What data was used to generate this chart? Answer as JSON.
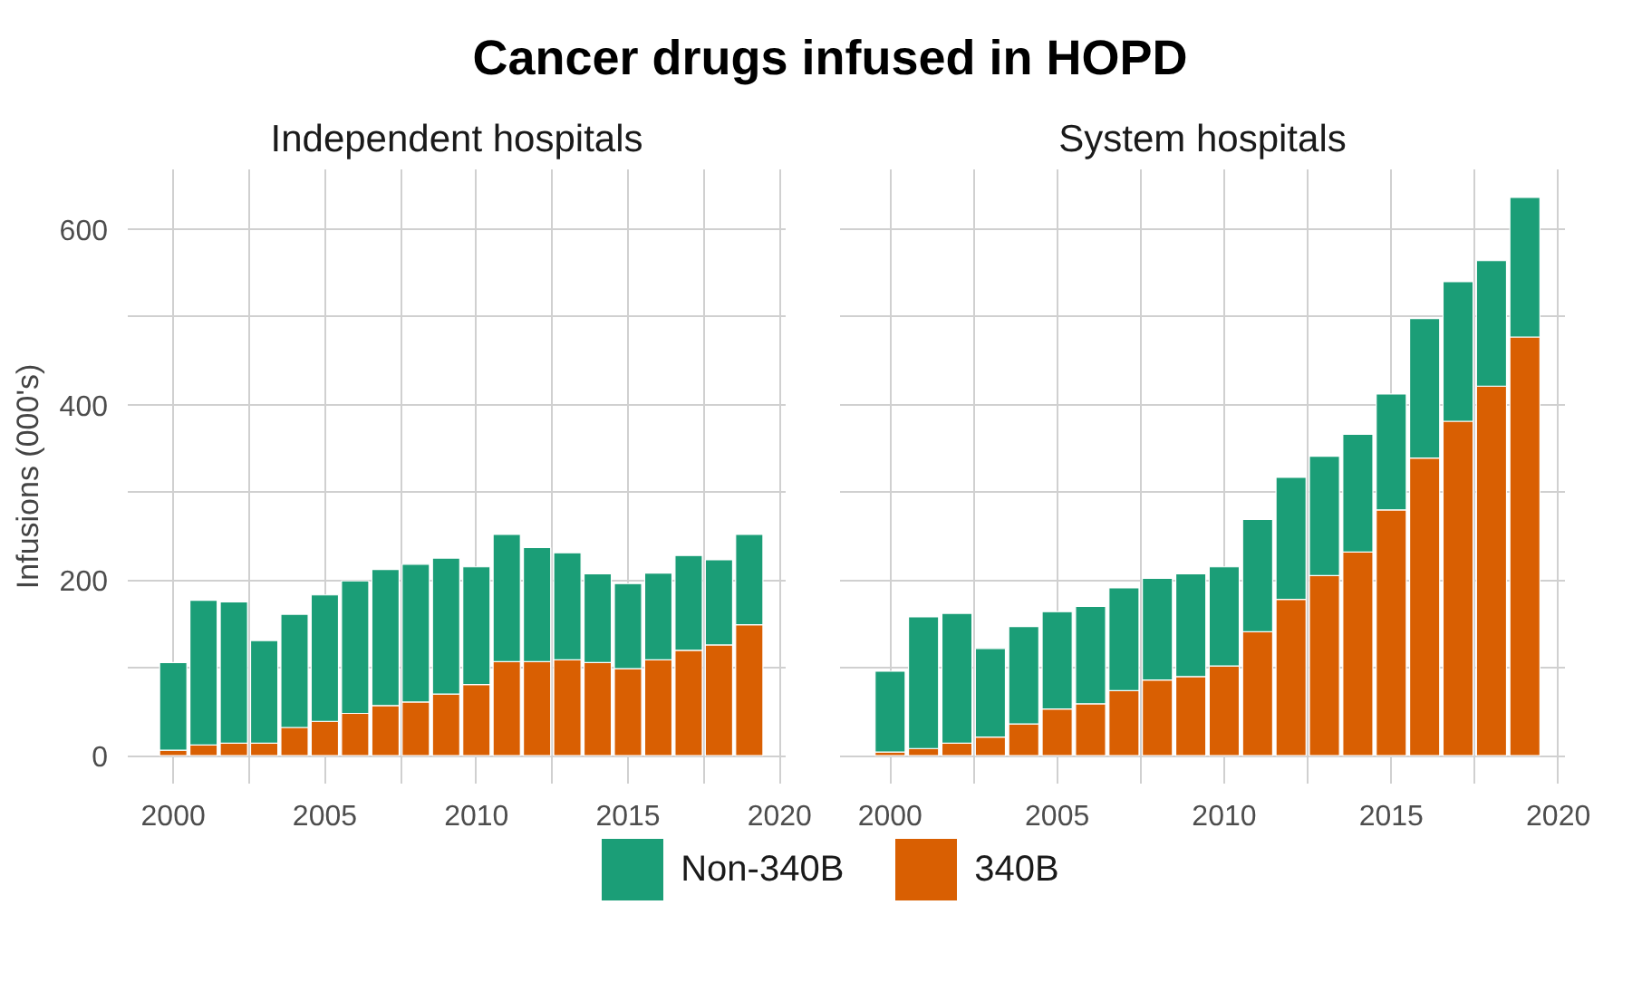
{
  "chart_data": [
    {
      "type": "bar",
      "stacked": true,
      "title": "Cancer drugs infused in HOPD",
      "subtitle": "Independent hospitals",
      "ylabel": "Infusions (000's)",
      "x": [
        2000,
        2001,
        2002,
        2003,
        2004,
        2005,
        2006,
        2007,
        2008,
        2009,
        2010,
        2011,
        2012,
        2013,
        2014,
        2015,
        2016,
        2017,
        2018,
        2019
      ],
      "series": [
        {
          "name": "340B",
          "color": "#d95f02",
          "values": [
            6,
            12,
            14,
            14,
            32,
            39,
            48,
            57,
            61,
            70,
            81,
            107,
            107,
            109,
            106,
            99,
            109,
            120,
            126,
            149
          ]
        },
        {
          "name": "Non-340B",
          "color": "#1b9e77",
          "values": [
            100,
            165,
            161,
            117,
            129,
            144,
            151,
            155,
            157,
            155,
            134,
            145,
            130,
            122,
            101,
            97,
            99,
            108,
            97,
            103
          ]
        }
      ],
      "xlim": [
        1998.5,
        2020.2
      ],
      "xticks": [
        2000,
        {
          "value": 2002.5,
          "label": null
        },
        2005,
        {
          "value": 2007.5,
          "label": null
        },
        2010,
        {
          "value": 2012.5,
          "label": null
        },
        2015,
        {
          "value": 2017.5,
          "label": null
        },
        2020
      ],
      "ylim": [
        -32,
        668
      ],
      "yticks": [
        0,
        {
          "value": 100,
          "label": null
        },
        200,
        {
          "value": 300,
          "label": null
        },
        400,
        {
          "value": 500,
          "label": null
        },
        600
      ],
      "grid": true,
      "legend": "bottom"
    },
    {
      "type": "bar",
      "stacked": true,
      "subtitle": "System hospitals",
      "x": [
        2000,
        2001,
        2002,
        2003,
        2004,
        2005,
        2006,
        2007,
        2008,
        2009,
        2010,
        2011,
        2012,
        2013,
        2014,
        2015,
        2016,
        2017,
        2018,
        2019
      ],
      "series": [
        {
          "color": "#d95f02",
          "values": [
            4,
            8,
            14,
            21,
            36,
            53,
            59,
            74,
            86,
            90,
            102,
            141,
            178,
            205,
            232,
            280,
            339,
            381,
            421,
            477
          ]
        },
        {
          "color": "#1b9e77",
          "values": [
            92,
            150,
            148,
            101,
            111,
            111,
            111,
            117,
            116,
            117,
            113,
            128,
            139,
            136,
            134,
            132,
            159,
            159,
            143,
            159
          ]
        }
      ],
      "xlim": [
        1998.5,
        2020.2
      ],
      "xticks": [
        2000,
        {
          "value": 2002.5,
          "label": null
        },
        2005,
        {
          "value": 2007.5,
          "label": null
        },
        2010,
        {
          "value": 2012.5,
          "label": null
        },
        2015,
        {
          "value": 2017.5,
          "label": null
        },
        2020
      ],
      "ylim": [
        -32,
        668
      ],
      "yticks": [
        0,
        {
          "value": 100,
          "label": null
        },
        200,
        {
          "value": 300,
          "label": null
        },
        400,
        {
          "value": 500,
          "label": null
        },
        600
      ],
      "grid": true,
      "tick_labels": "x"
    }
  ]
}
